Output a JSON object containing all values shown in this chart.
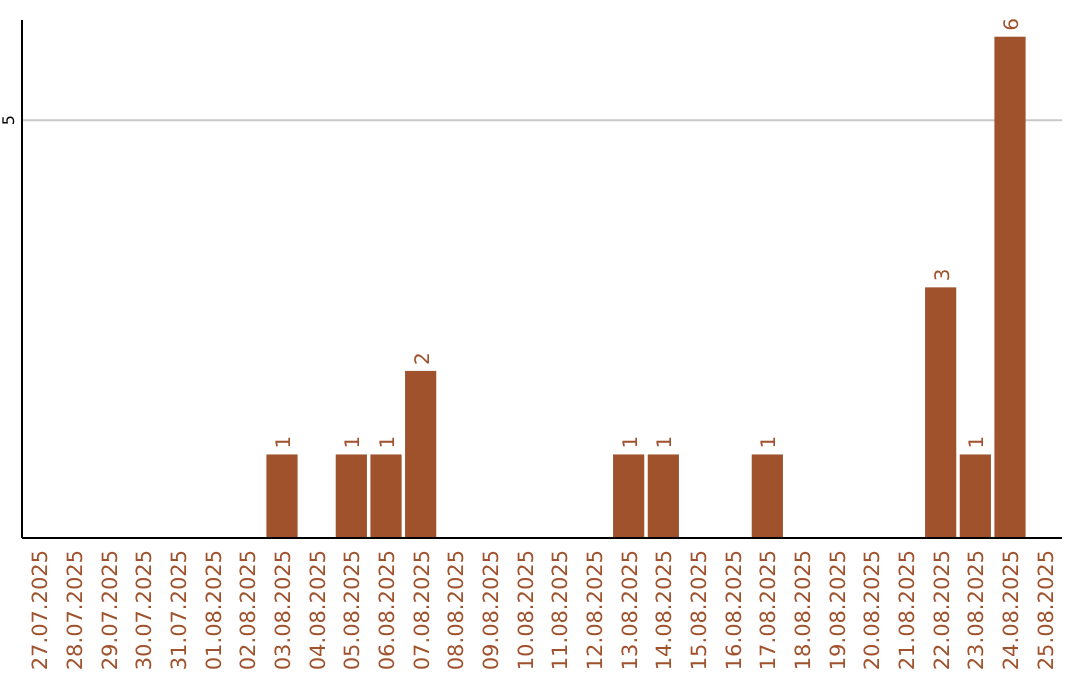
{
  "chart_data": {
    "type": "bar",
    "categories": [
      "27.07.2025",
      "28.07.2025",
      "29.07.2025",
      "30.07.2025",
      "31.07.2025",
      "01.08.2025",
      "02.08.2025",
      "03.08.2025",
      "04.08.2025",
      "05.08.2025",
      "06.08.2025",
      "07.08.2025",
      "08.08.2025",
      "09.08.2025",
      "10.08.2025",
      "11.08.2025",
      "12.08.2025",
      "13.08.2025",
      "14.08.2025",
      "15.08.2025",
      "16.08.2025",
      "17.08.2025",
      "18.08.2025",
      "19.08.2025",
      "20.08.2025",
      "21.08.2025",
      "22.08.2025",
      "23.08.2025",
      "24.08.2025",
      "25.08.2025"
    ],
    "values": [
      0,
      0,
      0,
      0,
      0,
      0,
      0,
      1,
      0,
      1,
      1,
      2,
      0,
      0,
      0,
      0,
      0,
      1,
      1,
      0,
      0,
      1,
      0,
      0,
      0,
      0,
      3,
      1,
      6,
      0
    ],
    "value_labels": [
      null,
      null,
      null,
      null,
      null,
      null,
      null,
      "1",
      null,
      "1",
      "1",
      "2",
      null,
      null,
      null,
      null,
      null,
      "1",
      "1",
      null,
      null,
      "1",
      null,
      null,
      null,
      null,
      "3",
      "1",
      "6",
      null
    ],
    "color": "#a0522d",
    "ylim": [
      0,
      6.2
    ],
    "yticks": [
      5
    ],
    "grid": "y"
  }
}
